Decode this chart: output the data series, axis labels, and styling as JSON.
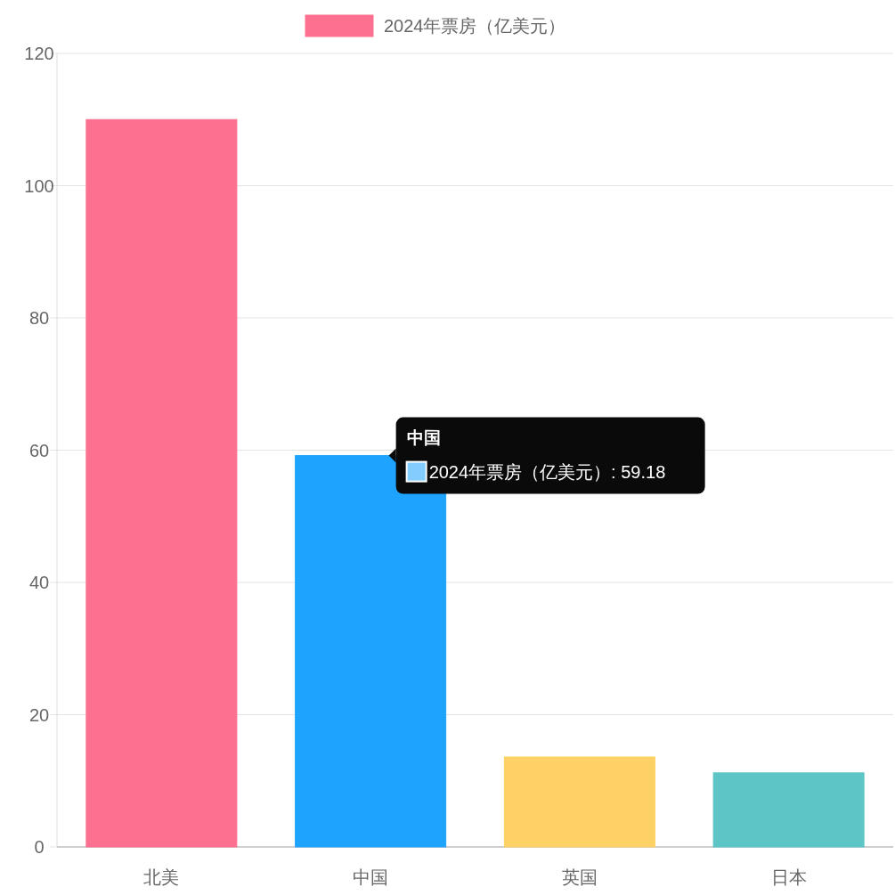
{
  "chart_data": {
    "type": "bar",
    "categories": [
      "北美",
      "中国",
      "英国",
      "日本"
    ],
    "series": [
      {
        "name": "2024年票房（亿美元）",
        "colors": [
          "#fe7090",
          "#1ea3fe",
          "#fed166",
          "#5dc5c5"
        ],
        "values": [
          110,
          59.18,
          13.6,
          11.2
        ]
      }
    ],
    "ylim": [
      0,
      120
    ],
    "yticks": [
      0,
      20,
      40,
      60,
      80,
      100,
      120
    ],
    "grid": "y",
    "legend": "top",
    "annotations": [
      {
        "text": "中国",
        "x": "中国",
        "y": 59.18
      },
      "2024年票房（亿美元）: 59.18"
    ]
  }
}
